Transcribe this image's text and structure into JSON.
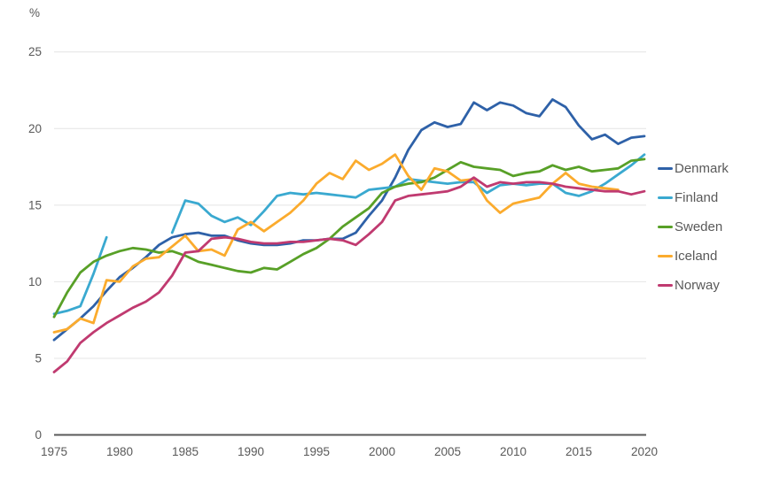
{
  "chart_data": {
    "type": "line",
    "title": "",
    "unit_label": "%",
    "xlabel": "",
    "ylabel": "%",
    "x": [
      1975,
      1976,
      1977,
      1978,
      1979,
      1980,
      1981,
      1982,
      1983,
      1984,
      1985,
      1986,
      1987,
      1988,
      1989,
      1990,
      1991,
      1992,
      1993,
      1994,
      1995,
      1996,
      1997,
      1998,
      1999,
      2000,
      2001,
      2002,
      2003,
      2004,
      2005,
      2006,
      2007,
      2008,
      2009,
      2010,
      2011,
      2012,
      2013,
      2014,
      2015,
      2016,
      2017,
      2018,
      2019,
      2020
    ],
    "xticks": [
      1975,
      1980,
      1985,
      1990,
      1995,
      2000,
      2005,
      2010,
      2015,
      2020
    ],
    "yticks": [
      0,
      5,
      10,
      15,
      20,
      25
    ],
    "ylim": [
      0,
      25
    ],
    "grid": true,
    "legend_position": "right",
    "axis_color": "#595959",
    "grid_color": "#e4e4e4",
    "series": [
      {
        "name": "Denmark",
        "color": "#2e61a8",
        "values": [
          6.2,
          6.9,
          7.6,
          8.4,
          9.4,
          10.3,
          10.9,
          11.6,
          12.4,
          12.9,
          13.1,
          13.2,
          13.0,
          13.0,
          12.7,
          12.5,
          12.4,
          12.4,
          12.5,
          12.7,
          12.7,
          12.8,
          12.8,
          13.2,
          14.3,
          15.3,
          16.8,
          18.6,
          19.9,
          20.4,
          20.1,
          20.3,
          21.7,
          21.2,
          21.7,
          21.5,
          21.0,
          20.8,
          21.9,
          21.4,
          20.2,
          19.3,
          19.6,
          19.0,
          19.4,
          19.5
        ]
      },
      {
        "name": "Finland",
        "color": "#3aa9d0",
        "values": [
          7.9,
          8.1,
          8.4,
          10.5,
          12.9,
          null,
          null,
          null,
          null,
          13.2,
          15.3,
          15.1,
          14.3,
          13.9,
          14.2,
          13.7,
          14.6,
          15.6,
          15.8,
          15.7,
          15.8,
          15.7,
          15.6,
          15.5,
          16.0,
          16.1,
          16.2,
          16.7,
          16.6,
          16.5,
          16.4,
          16.5,
          16.5,
          15.8,
          16.3,
          16.4,
          16.3,
          16.4,
          16.4,
          15.8,
          15.6,
          15.9,
          16.4,
          17.0,
          17.6,
          18.3
        ]
      },
      {
        "name": "Sweden",
        "color": "#58a027",
        "values": [
          7.7,
          9.3,
          10.6,
          11.3,
          11.7,
          12.0,
          12.2,
          12.1,
          11.9,
          12.0,
          11.7,
          11.3,
          11.1,
          10.9,
          10.7,
          10.6,
          10.9,
          10.8,
          11.3,
          11.8,
          12.2,
          12.8,
          13.6,
          14.2,
          14.8,
          15.8,
          16.2,
          16.4,
          16.5,
          16.8,
          17.3,
          17.8,
          17.5,
          17.4,
          17.3,
          16.9,
          17.1,
          17.2,
          17.6,
          17.3,
          17.5,
          17.2,
          17.3,
          17.4,
          17.9,
          18.0
        ]
      },
      {
        "name": "Iceland",
        "color": "#fbab2d",
        "values": [
          6.7,
          6.9,
          7.6,
          7.3,
          10.1,
          10.0,
          11.0,
          11.5,
          11.6,
          12.3,
          13.0,
          12.0,
          12.1,
          11.7,
          13.4,
          13.9,
          13.3,
          13.9,
          14.5,
          15.3,
          16.4,
          17.1,
          16.7,
          17.9,
          17.3,
          17.7,
          18.3,
          16.9,
          16.0,
          17.4,
          17.2,
          16.6,
          16.7,
          15.3,
          14.5,
          15.1,
          15.3,
          15.5,
          16.4,
          17.1,
          16.4,
          16.2,
          16.1,
          16.0,
          null,
          null
        ]
      },
      {
        "name": "Norway",
        "color": "#c03a70",
        "values": [
          4.1,
          4.8,
          6.0,
          6.7,
          7.3,
          7.8,
          8.3,
          8.7,
          9.3,
          10.4,
          11.9,
          12.0,
          12.8,
          12.9,
          12.8,
          12.6,
          12.5,
          12.5,
          12.6,
          12.6,
          12.7,
          12.8,
          12.7,
          12.4,
          13.1,
          13.9,
          15.3,
          15.6,
          15.7,
          15.8,
          15.9,
          16.2,
          16.8,
          16.2,
          16.5,
          16.4,
          16.5,
          16.5,
          16.4,
          16.2,
          16.1,
          16.0,
          15.9,
          15.9,
          15.7,
          15.9
        ]
      }
    ]
  }
}
